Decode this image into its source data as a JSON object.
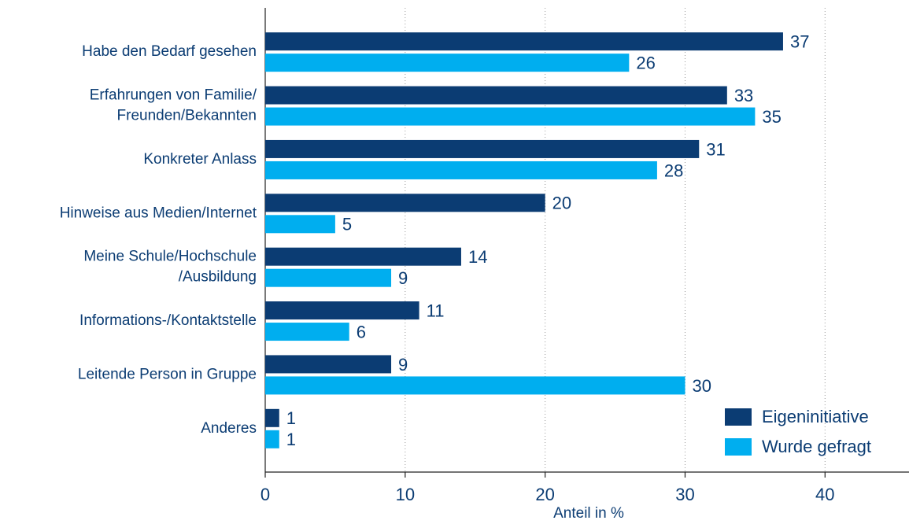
{
  "chart_data": {
    "type": "barh",
    "categories": [
      "Habe den Bedarf gesehen",
      "Erfahrungen von Familie/\nFreunden/Bekannten",
      "Konkreter Anlass",
      "Hinweise aus Medien/Internet",
      "Meine Schule/Hochschule\n/Ausbildung",
      "Informations-/Kontaktstelle",
      "Leitende Person in Gruppe",
      "Anderes"
    ],
    "series": [
      {
        "name": "Eigeninitiative",
        "color": "#0b3c73",
        "values": [
          37,
          33,
          31,
          20,
          14,
          11,
          9,
          1
        ]
      },
      {
        "name": "Wurde gefragt",
        "color": "#00aeef",
        "values": [
          26,
          35,
          28,
          5,
          9,
          6,
          30,
          1
        ]
      }
    ],
    "xlabel": "Anteil in %",
    "xlim": [
      0,
      46
    ],
    "xticks": [
      0,
      10,
      20,
      30,
      40
    ],
    "grid": true,
    "legend": "lower right"
  }
}
